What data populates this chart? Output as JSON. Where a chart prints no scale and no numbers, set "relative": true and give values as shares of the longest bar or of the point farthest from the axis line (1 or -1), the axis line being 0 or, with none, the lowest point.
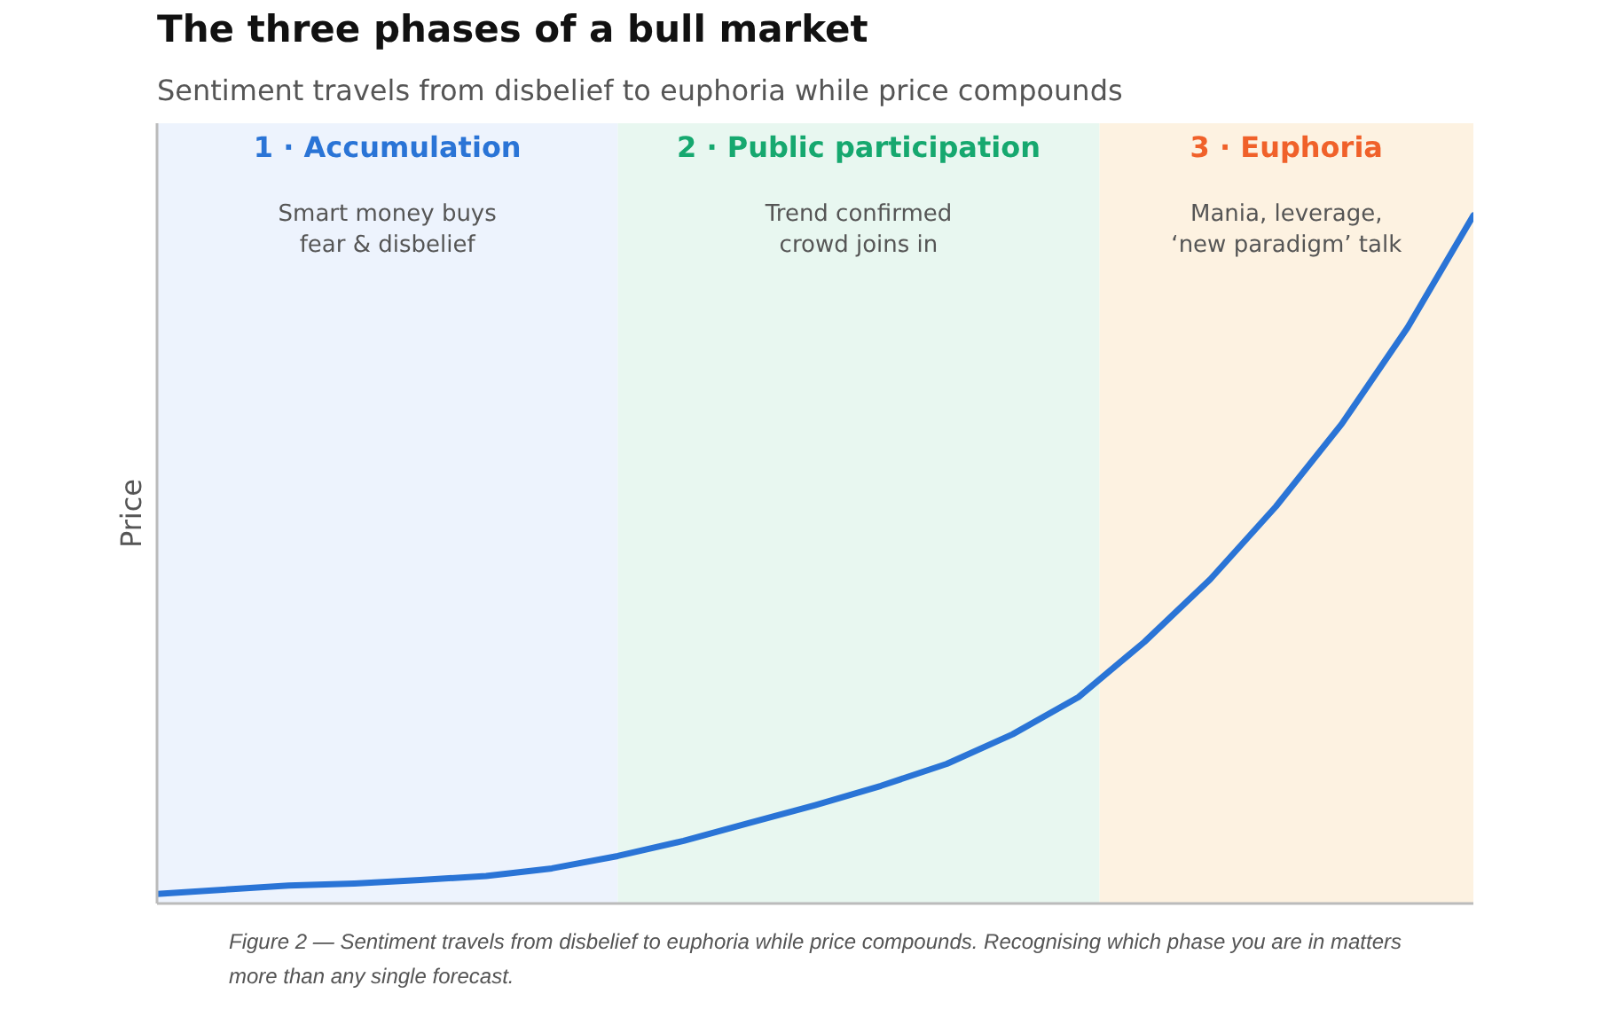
{
  "chart_data": {
    "type": "line",
    "title": "The three phases of a bull market",
    "subtitle": "Sentiment travels from disbelief to euphoria while price compounds",
    "ylabel": "Price",
    "relative": true,
    "categories": [
      null,
      null,
      null,
      null,
      null,
      null,
      null,
      null,
      null,
      null,
      null,
      null,
      null,
      null,
      null,
      null,
      null,
      null,
      null,
      null,
      null
    ],
    "series": [
      {
        "color": "#2a74d6",
        "values": [
          0.014,
          0.02,
          0.026,
          0.029,
          0.034,
          0.04,
          0.051,
          0.069,
          0.091,
          0.117,
          0.143,
          0.171,
          0.203,
          0.246,
          0.3,
          0.38,
          0.471,
          0.577,
          0.697,
          0.837,
          1
        ]
      }
    ],
    "annotations": [
      "1 · Accumulation",
      "2 · Public participation",
      "3 · Euphoria",
      "Smart money buys\nfear & disbelief",
      "Trend confirmed\ncrowd joins in",
      "Mania, leverage,\n‘new paradigm’ talk",
      "Figure 2 — Sentiment travels from disbelief to euphoria while price compounds. Recognising which phase you are in matters more than any single forecast."
    ]
  }
}
